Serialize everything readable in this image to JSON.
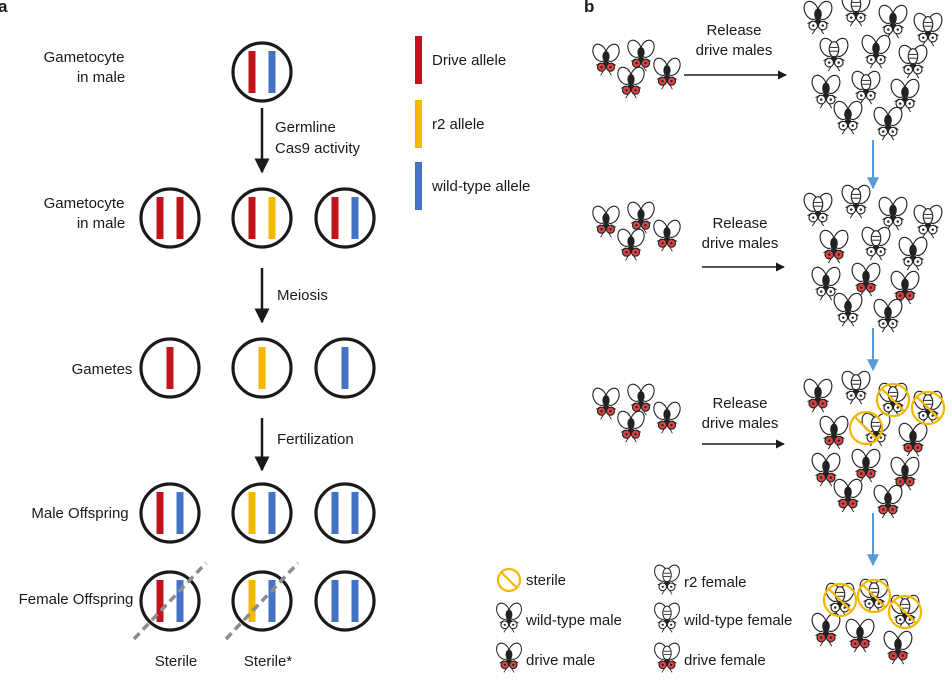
{
  "panels": {
    "a": "a",
    "b": "b"
  },
  "colors": {
    "drive": "#c0141c",
    "r2": "#f5b800",
    "wildtype": "#4472c4",
    "ring": "#1a1a1a",
    "arrow": "#1a1a1a",
    "flow_arrow": "#5b9bd5",
    "sterile_ring": "#f5b800",
    "strike": "#8c8c8c"
  },
  "row_labels": {
    "gametocyte1": [
      "Gametocyte",
      "in male"
    ],
    "gametocyte2": [
      "Gametocyte",
      "in male"
    ],
    "gametes": "Gametes",
    "male_offspring": "Male Offspring",
    "female_offspring": "Female Offspring"
  },
  "step_labels": {
    "cas9": [
      "Germline",
      "Cas9 activity"
    ],
    "meiosis": "Meiosis",
    "fertilization": "Fertilization"
  },
  "legend_a": [
    {
      "allele": "drive",
      "label": "Drive allele"
    },
    {
      "allele": "r2",
      "label": "r2 allele"
    },
    {
      "allele": "wildtype",
      "label": "wild-type allele"
    }
  ],
  "genotypes": {
    "gametocyte1": [
      [
        "drive",
        "wildtype"
      ]
    ],
    "gametocyte2": [
      [
        "drive",
        "drive"
      ],
      [
        "drive",
        "r2"
      ],
      [
        "drive",
        "wildtype"
      ]
    ],
    "gametes": [
      [
        "drive"
      ],
      [
        "r2"
      ],
      [
        "wildtype"
      ]
    ],
    "male_offspring": [
      [
        "drive",
        "wildtype"
      ],
      [
        "r2",
        "wildtype"
      ],
      [
        "wildtype",
        "wildtype"
      ]
    ],
    "female_offspring": [
      [
        "drive",
        "wildtype"
      ],
      [
        "r2",
        "wildtype"
      ],
      [
        "wildtype",
        "wildtype"
      ]
    ]
  },
  "sterile_marks": {
    "female_offspring": [
      true,
      true,
      false
    ]
  },
  "bottom_labels": [
    "Sterile",
    "Sterile*"
  ],
  "release_label": [
    "Release",
    "drive males"
  ],
  "legend_b": [
    {
      "icon": "sterile",
      "label": "sterile"
    },
    {
      "icon": "wild-type-male",
      "label": "wild-type male"
    },
    {
      "icon": "drive-male",
      "label": "drive male"
    },
    {
      "icon": "r2-female",
      "label": "r2 female"
    },
    {
      "icon": "wild-type-female",
      "label": "wild-type female"
    },
    {
      "icon": "drive-female",
      "label": "drive female"
    }
  ]
}
